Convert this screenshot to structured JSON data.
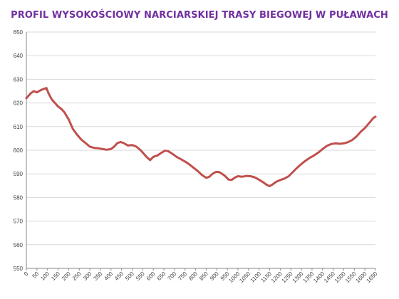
{
  "chart_data": {
    "type": "line",
    "title": "PROFIL WYSOKOŚCIOWY NARCIARSKIEJ TRASY BIEGOWEJ W PUŁAWACH",
    "xlabel": "",
    "ylabel": "",
    "xlim": [
      0,
      1650
    ],
    "ylim": [
      550,
      650
    ],
    "x_ticks": [
      0,
      50,
      100,
      150,
      200,
      250,
      300,
      350,
      400,
      450,
      500,
      550,
      600,
      650,
      700,
      750,
      800,
      850,
      900,
      950,
      1000,
      1050,
      1100,
      1150,
      1200,
      1250,
      1300,
      1350,
      1400,
      1450,
      1500,
      1550,
      1600,
      1650
    ],
    "y_ticks": [
      550,
      560,
      570,
      580,
      590,
      600,
      610,
      620,
      630,
      640,
      650
    ],
    "grid": "horizontal",
    "legend": "none",
    "line_color": "#c0504d",
    "series": [
      {
        "name": "",
        "points": [
          [
            0,
            622
          ],
          [
            20,
            624
          ],
          [
            35,
            625
          ],
          [
            50,
            624.5
          ],
          [
            70,
            625.5
          ],
          [
            85,
            626
          ],
          [
            95,
            626.3
          ],
          [
            105,
            624
          ],
          [
            120,
            621.5
          ],
          [
            135,
            620
          ],
          [
            150,
            618.5
          ],
          [
            165,
            617.5
          ],
          [
            180,
            616
          ],
          [
            200,
            613
          ],
          [
            220,
            609
          ],
          [
            240,
            606.5
          ],
          [
            260,
            604.5
          ],
          [
            280,
            603
          ],
          [
            300,
            601.5
          ],
          [
            320,
            601
          ],
          [
            340,
            600.8
          ],
          [
            360,
            600.5
          ],
          [
            380,
            600.2
          ],
          [
            400,
            600.5
          ],
          [
            415,
            601.5
          ],
          [
            430,
            603
          ],
          [
            445,
            603.5
          ],
          [
            460,
            603
          ],
          [
            480,
            602
          ],
          [
            500,
            602.2
          ],
          [
            520,
            601.5
          ],
          [
            540,
            600
          ],
          [
            555,
            598.5
          ],
          [
            570,
            597
          ],
          [
            585,
            595.8
          ],
          [
            600,
            597.2
          ],
          [
            620,
            597.8
          ],
          [
            640,
            599
          ],
          [
            655,
            599.8
          ],
          [
            670,
            599.6
          ],
          [
            690,
            598.5
          ],
          [
            710,
            597.2
          ],
          [
            730,
            596.2
          ],
          [
            750,
            595.2
          ],
          [
            770,
            594
          ],
          [
            790,
            592.6
          ],
          [
            810,
            591.2
          ],
          [
            830,
            589.5
          ],
          [
            850,
            588.3
          ],
          [
            865,
            588.8
          ],
          [
            880,
            590
          ],
          [
            895,
            590.8
          ],
          [
            910,
            590.8
          ],
          [
            925,
            590
          ],
          [
            940,
            589
          ],
          [
            955,
            587.6
          ],
          [
            970,
            587.4
          ],
          [
            985,
            588.4
          ],
          [
            1000,
            589
          ],
          [
            1020,
            588.8
          ],
          [
            1040,
            589.1
          ],
          [
            1060,
            589
          ],
          [
            1080,
            588.5
          ],
          [
            1100,
            587.5
          ],
          [
            1120,
            586.4
          ],
          [
            1135,
            585.4
          ],
          [
            1150,
            584.8
          ],
          [
            1165,
            585.6
          ],
          [
            1180,
            586.6
          ],
          [
            1200,
            587.4
          ],
          [
            1220,
            588
          ],
          [
            1240,
            589
          ],
          [
            1260,
            590.8
          ],
          [
            1280,
            592.6
          ],
          [
            1300,
            594.2
          ],
          [
            1320,
            595.6
          ],
          [
            1340,
            596.8
          ],
          [
            1360,
            597.8
          ],
          [
            1380,
            599
          ],
          [
            1400,
            600.5
          ],
          [
            1420,
            601.8
          ],
          [
            1440,
            602.6
          ],
          [
            1460,
            602.9
          ],
          [
            1480,
            602.7
          ],
          [
            1500,
            602.9
          ],
          [
            1520,
            603.4
          ],
          [
            1540,
            604.3
          ],
          [
            1560,
            605.8
          ],
          [
            1580,
            607.8
          ],
          [
            1600,
            609.4
          ],
          [
            1620,
            611.5
          ],
          [
            1640,
            613.6
          ],
          [
            1650,
            614.2
          ]
        ]
      }
    ]
  }
}
